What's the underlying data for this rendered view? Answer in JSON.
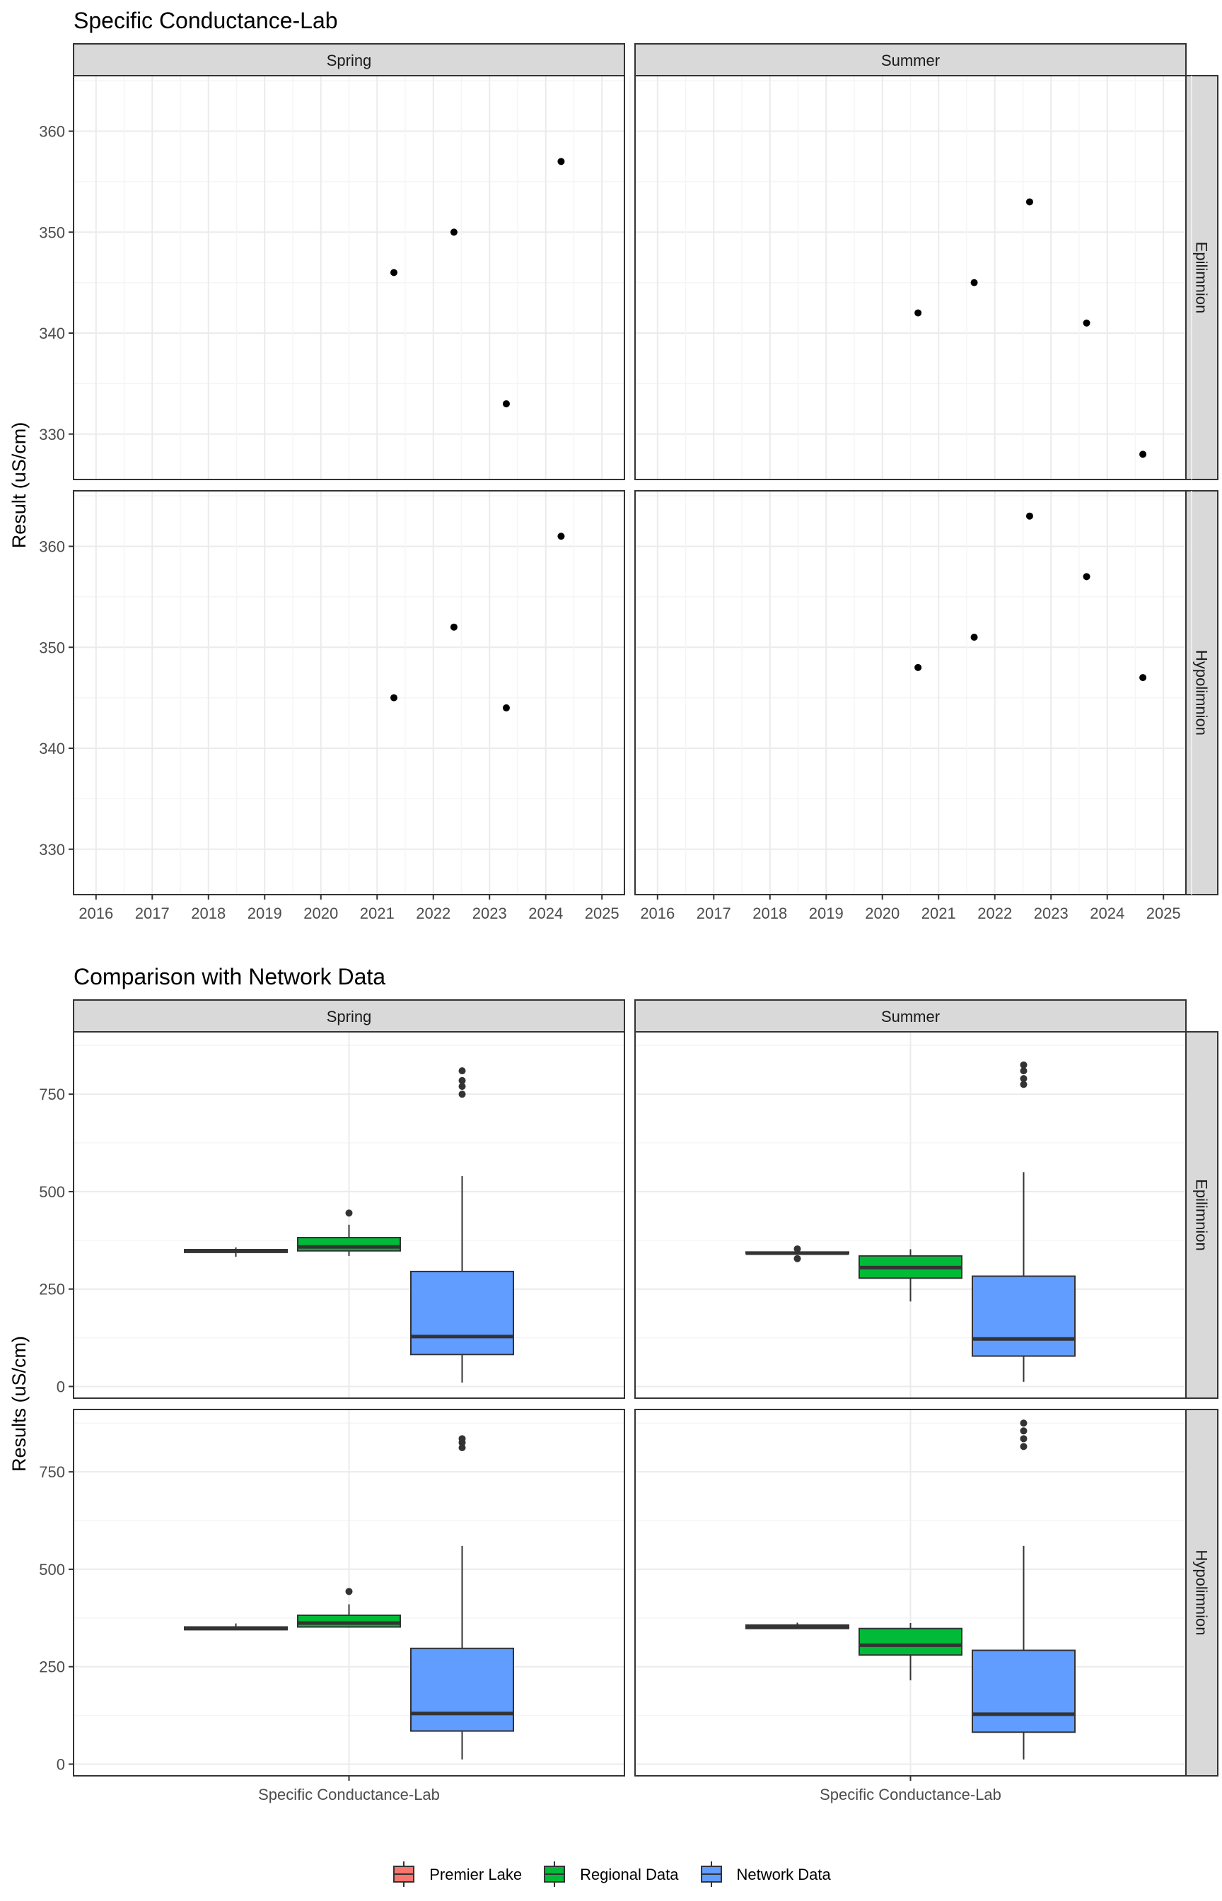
{
  "colors": {
    "strip_fill": "#D9D9D9",
    "panel_border": "#333333",
    "grid_major": "#EBEBEB",
    "grid_minor": "#F5F5F5",
    "point": "#000000",
    "premier_lake": "#F8766D",
    "regional_data": "#00BA38",
    "network_data": "#619CFF",
    "box_line": "#333333"
  },
  "chart_data": [
    {
      "type": "scatter",
      "title": "Specific Conductance-Lab",
      "ylabel": "Result (uS/cm)",
      "xlabel": "",
      "xlim": [
        2015.6,
        2025.4
      ],
      "ylim": [
        325.5,
        365.5
      ],
      "x_ticks": [
        "2016",
        "2017",
        "2018",
        "2019",
        "2020",
        "2021",
        "2022",
        "2023",
        "2024",
        "2025"
      ],
      "y_ticks": [
        "330",
        "340",
        "350",
        "360"
      ],
      "grid": true,
      "columns": [
        "Spring",
        "Summer"
      ],
      "rows": [
        "Epilimnion",
        "Hypolimnion"
      ],
      "panels": [
        {
          "column": "Spring",
          "row": "Epilimnion",
          "x": [
            "2021-04-20",
            "2022-05-15",
            "2023-04-20",
            "2024-04-10"
          ],
          "y": [
            346,
            350,
            333,
            357
          ]
        },
        {
          "column": "Summer",
          "row": "Epilimnion",
          "x": [
            "2020-08-20",
            "2021-08-20",
            "2022-08-15",
            "2023-08-20",
            "2024-08-20"
          ],
          "y": [
            342,
            345,
            353,
            341,
            328
          ]
        },
        {
          "column": "Spring",
          "row": "Hypolimnion",
          "x": [
            "2021-04-20",
            "2022-05-15",
            "2023-04-20",
            "2024-04-10"
          ],
          "y": [
            345,
            352,
            344,
            361
          ]
        },
        {
          "column": "Summer",
          "row": "Hypolimnion",
          "x": [
            "2020-08-20",
            "2021-08-20",
            "2022-08-15",
            "2023-08-20",
            "2024-08-20"
          ],
          "y": [
            348,
            351,
            363,
            357,
            347
          ]
        }
      ]
    },
    {
      "type": "box",
      "title": "Comparison with Network Data",
      "ylabel": "Results (uS/cm)",
      "xlabel": "",
      "categories": [
        "Specific Conductance-Lab"
      ],
      "ylim": [
        -30,
        910
      ],
      "y_ticks": [
        "0",
        "250",
        "500",
        "750"
      ],
      "grid": true,
      "legend_position": "bottom",
      "columns": [
        "Spring",
        "Summer"
      ],
      "rows": [
        "Epilimnion",
        "Hypolimnion"
      ],
      "series": [
        "Premier Lake",
        "Regional Data",
        "Network Data"
      ],
      "panels": [
        {
          "column": "Spring",
          "row": "Epilimnion",
          "boxes": [
            {
              "series": "Premier Lake",
              "min": 333,
              "q1": 344,
              "median": 348,
              "q3": 351,
              "max": 357,
              "outliers": []
            },
            {
              "series": "Regional Data",
              "min": 335,
              "q1": 348,
              "median": 358,
              "q3": 382,
              "max": 415,
              "outliers": [
                445
              ]
            },
            {
              "series": "Network Data",
              "min": 10,
              "q1": 82,
              "median": 128,
              "q3": 295,
              "max": 540,
              "outliers": [
                750,
                770,
                785,
                810
              ]
            }
          ]
        },
        {
          "column": "Summer",
          "row": "Epilimnion",
          "boxes": [
            {
              "series": "Premier Lake",
              "min": 338,
              "q1": 341,
              "median": 342,
              "q3": 345,
              "max": 348,
              "outliers": [
                328,
                353
              ]
            },
            {
              "series": "Regional Data",
              "min": 218,
              "q1": 278,
              "median": 305,
              "q3": 335,
              "max": 352,
              "outliers": []
            },
            {
              "series": "Network Data",
              "min": 12,
              "q1": 78,
              "median": 122,
              "q3": 283,
              "max": 550,
              "outliers": [
                775,
                790,
                810,
                825
              ]
            }
          ]
        },
        {
          "column": "Spring",
          "row": "Hypolimnion",
          "boxes": [
            {
              "series": "Premier Lake",
              "min": 344,
              "q1": 345,
              "median": 348,
              "q3": 352,
              "max": 361,
              "outliers": []
            },
            {
              "series": "Regional Data",
              "min": 350,
              "q1": 352,
              "median": 362,
              "q3": 382,
              "max": 410,
              "outliers": [
                443
              ]
            },
            {
              "series": "Network Data",
              "min": 12,
              "q1": 85,
              "median": 130,
              "q3": 297,
              "max": 560,
              "outliers": [
                812,
                825,
                835
              ]
            }
          ]
        },
        {
          "column": "Summer",
          "row": "Hypolimnion",
          "boxes": [
            {
              "series": "Premier Lake",
              "min": 347,
              "q1": 348,
              "median": 351,
              "q3": 357,
              "max": 363,
              "outliers": []
            },
            {
              "series": "Regional Data",
              "min": 215,
              "q1": 280,
              "median": 305,
              "q3": 348,
              "max": 362,
              "outliers": []
            },
            {
              "series": "Network Data",
              "min": 12,
              "q1": 82,
              "median": 128,
              "q3": 292,
              "max": 560,
              "outliers": [
                815,
                835,
                855,
                875
              ]
            }
          ]
        }
      ]
    }
  ],
  "legend": {
    "items": [
      {
        "label": "Premier Lake",
        "color": "#F8766D"
      },
      {
        "label": "Regional Data",
        "color": "#00BA38"
      },
      {
        "label": "Network Data",
        "color": "#619CFF"
      }
    ]
  }
}
